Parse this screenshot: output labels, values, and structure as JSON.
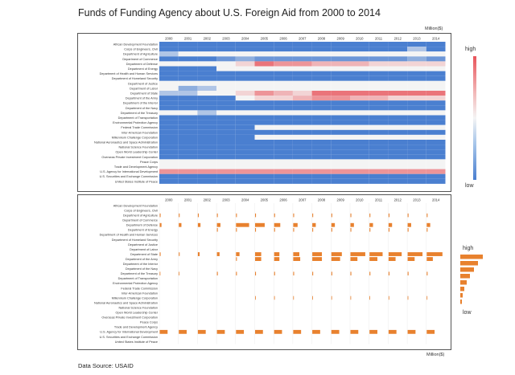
{
  "title": "Funds of Funding Agency about U.S. Foreign Aid from 2000 to 2014",
  "unit": "Million($)",
  "source": "Data Source: USAID",
  "legend": {
    "high": "high",
    "low": "low"
  },
  "colors": {
    "high": "#e8545b",
    "mid": "#f4f4f4",
    "low": "#4a7fd0",
    "bar": "#e8812e"
  },
  "chart_data": [
    {
      "type": "heatmap",
      "title": "Funds of Funding Agency about U.S. Foreign Aid from 2000 to 2014",
      "xlabel": "",
      "ylabel": "",
      "x": [
        "2000",
        "2001",
        "2002",
        "2003",
        "2004",
        "2005",
        "2006",
        "2007",
        "2008",
        "2009",
        "2010",
        "2011",
        "2012",
        "2013",
        "2014"
      ],
      "y": [
        "African Development Foundation",
        "Corps of Engineers, Civil",
        "Department of Agriculture",
        "Department of Commerce",
        "Department of Defense",
        "Department of Energy",
        "Department of Health and Human Services",
        "Department of Homeland Security",
        "Department of Justice",
        "Department of Labor",
        "Department of State",
        "Department of the Army",
        "Department of the Interior",
        "Department of the Navy",
        "Department of the Treasury",
        "Department of Transportation",
        "Environmental Protection Agency",
        "Federal Trade Commission",
        "Inter-American Foundation",
        "Millennium Challenge Corporation",
        "National Aeronautics and Space Administration",
        "National Science Foundation",
        "Open World Leadership Center",
        "Overseas Private Investment Corporation",
        "Peace Corps",
        "Trade and Development Agency",
        "U.S. Agency for International Development",
        "U.S. Securities and Exchange Commission",
        "United States Institute of Peace"
      ],
      "values": [
        [
          0.0,
          0.0,
          0.0,
          0.0,
          0.0,
          0.0,
          0.0,
          0.0,
          0.0,
          0.0,
          0.0,
          0.0,
          0.0,
          0.0,
          0.0
        ],
        [
          0.0,
          0.0,
          0.0,
          0.0,
          0.0,
          0.0,
          0.0,
          0.0,
          0.0,
          0.0,
          0.0,
          0.0,
          0.0,
          0.3,
          0.0
        ],
        [
          0.3,
          0.5,
          0.5,
          0.5,
          0.5,
          0.5,
          0.5,
          0.5,
          0.5,
          0.5,
          0.5,
          0.5,
          0.5,
          0.5,
          0.5
        ],
        [
          0.0,
          0.0,
          0.0,
          0.1,
          0.2,
          0.1,
          0.1,
          0.1,
          0.1,
          0.1,
          0.1,
          0.1,
          0.1,
          0.2,
          0.1
        ],
        [
          0.5,
          0.5,
          0.5,
          0.5,
          0.6,
          0.9,
          0.8,
          0.8,
          0.7,
          0.7,
          0.7,
          0.6,
          0.6,
          0.6,
          0.6
        ],
        [
          0.0,
          0.0,
          0.0,
          0.5,
          0.5,
          0.5,
          0.5,
          0.5,
          0.5,
          0.5,
          0.5,
          0.5,
          0.5,
          0.5,
          0.5
        ],
        [
          0.0,
          0.0,
          0.0,
          0.0,
          0.0,
          0.0,
          0.0,
          0.0,
          0.0,
          0.0,
          0.0,
          0.0,
          0.0,
          0.0,
          0.0
        ],
        [
          0.0,
          0.0,
          0.0,
          0.0,
          0.0,
          0.0,
          0.0,
          0.0,
          0.0,
          0.0,
          0.0,
          0.0,
          0.0,
          0.0,
          0.0
        ],
        [
          0.5,
          0.5,
          0.5,
          0.5,
          0.5,
          0.5,
          0.5,
          0.5,
          0.5,
          0.5,
          0.5,
          0.5,
          0.5,
          0.5,
          0.5
        ],
        [
          0.5,
          0.2,
          0.3,
          0.5,
          0.5,
          0.5,
          0.5,
          0.5,
          0.5,
          0.5,
          0.5,
          0.5,
          0.5,
          0.5,
          0.5
        ],
        [
          0.3,
          0.3,
          0.5,
          0.5,
          0.6,
          0.8,
          0.7,
          0.6,
          0.9,
          0.9,
          0.9,
          0.9,
          0.9,
          0.9,
          0.9
        ],
        [
          0.0,
          0.0,
          0.0,
          0.0,
          0.5,
          0.6,
          0.6,
          0.7,
          0.8,
          0.8,
          0.7,
          0.7,
          0.6,
          0.6,
          0.6
        ],
        [
          0.0,
          0.0,
          0.0,
          0.0,
          0.0,
          0.0,
          0.0,
          0.0,
          0.0,
          0.0,
          0.0,
          0.0,
          0.0,
          0.0,
          0.0
        ],
        [
          0.0,
          0.0,
          0.0,
          0.0,
          0.0,
          0.0,
          0.0,
          0.0,
          0.0,
          0.0,
          0.0,
          0.0,
          0.0,
          0.0,
          0.0
        ],
        [
          0.5,
          0.5,
          0.3,
          0.5,
          0.5,
          0.5,
          0.5,
          0.5,
          0.5,
          0.5,
          0.5,
          0.5,
          0.5,
          0.5,
          0.5
        ],
        [
          0.0,
          0.0,
          0.0,
          0.0,
          0.0,
          0.0,
          0.0,
          0.0,
          0.0,
          0.0,
          0.0,
          0.0,
          0.0,
          0.0,
          0.0
        ],
        [
          0.0,
          0.0,
          0.0,
          0.0,
          0.0,
          0.0,
          0.0,
          0.0,
          0.0,
          0.0,
          0.0,
          0.0,
          0.0,
          0.0,
          0.0
        ],
        [
          0.0,
          0.0,
          0.0,
          0.0,
          0.0,
          0.5,
          0.5,
          0.5,
          0.5,
          0.5,
          0.5,
          0.5,
          0.5,
          0.5,
          0.5
        ],
        [
          0.0,
          0.0,
          0.0,
          0.0,
          0.0,
          0.0,
          0.0,
          0.0,
          0.0,
          0.0,
          0.0,
          0.0,
          0.0,
          0.0,
          0.0
        ],
        [
          0.0,
          0.0,
          0.0,
          0.0,
          0.0,
          0.5,
          0.5,
          0.5,
          0.5,
          0.5,
          0.5,
          0.5,
          0.5,
          0.5,
          0.5
        ],
        [
          0.0,
          0.0,
          0.0,
          0.0,
          0.0,
          0.0,
          0.0,
          0.0,
          0.0,
          0.0,
          0.0,
          0.0,
          0.0,
          0.0,
          0.0
        ],
        [
          0.0,
          0.0,
          0.0,
          0.0,
          0.0,
          0.0,
          0.0,
          0.0,
          0.0,
          0.0,
          0.0,
          0.0,
          0.0,
          0.0,
          0.0
        ],
        [
          0.0,
          0.0,
          0.0,
          0.0,
          0.0,
          0.0,
          0.0,
          0.0,
          0.0,
          0.0,
          0.0,
          0.0,
          0.0,
          0.0,
          0.0
        ],
        [
          0.0,
          0.0,
          0.0,
          0.0,
          0.0,
          0.0,
          0.0,
          0.0,
          0.0,
          0.0,
          0.0,
          0.0,
          0.0,
          0.0,
          0.0
        ],
        [
          0.5,
          0.5,
          0.5,
          0.5,
          0.5,
          0.5,
          0.5,
          0.5,
          0.5,
          0.5,
          0.5,
          0.5,
          0.5,
          0.5,
          0.5
        ],
        [
          0.5,
          0.5,
          0.5,
          0.5,
          0.5,
          0.5,
          0.5,
          0.5,
          0.5,
          0.5,
          0.5,
          0.5,
          0.5,
          0.5,
          0.5
        ],
        [
          0.8,
          0.8,
          0.8,
          0.8,
          0.8,
          0.8,
          0.8,
          0.8,
          0.8,
          0.8,
          0.8,
          0.8,
          0.8,
          0.8,
          0.8
        ],
        [
          0.0,
          0.0,
          0.0,
          0.0,
          0.0,
          0.0,
          0.0,
          0.0,
          0.0,
          0.0,
          0.0,
          0.0,
          0.0,
          0.0,
          0.0
        ],
        [
          0.0,
          0.0,
          0.0,
          0.0,
          0.0,
          0.0,
          0.0,
          0.0,
          0.0,
          0.0,
          0.0,
          0.0,
          0.0,
          0.0,
          0.0
        ]
      ]
    },
    {
      "type": "bar",
      "title": "",
      "xlabel": "",
      "ylabel": "",
      "x": [
        "2000",
        "2001",
        "2002",
        "2003",
        "2004",
        "2005",
        "2006",
        "2007",
        "2008",
        "2009",
        "2010",
        "2011",
        "2012",
        "2013",
        "2014"
      ],
      "y": [
        "African Development Foundation",
        "Corps of Engineers, Civil",
        "Department of Agriculture",
        "Department of Commerce",
        "Department of Defense",
        "Department of Energy",
        "Department of Health and Human Services",
        "Department of Homeland Security",
        "Department of Justice",
        "Department of Labor",
        "Department of State",
        "Department of the Army",
        "Department of the Interior",
        "Department of the Navy",
        "Department of the Treasury",
        "Department of Transportation",
        "Environmental Protection Agency",
        "Federal Trade Commission",
        "Inter-American Foundation",
        "Millennium Challenge Corporation",
        "National Aeronautics and Space Administration",
        "National Science Foundation",
        "Open World Leadership Center",
        "Overseas Private Investment Corporation",
        "Peace Corps",
        "Trade and Development Agency",
        "U.S. Agency for International Development",
        "U.S. Securities and Exchange Commission",
        "United States Institute of Peace"
      ],
      "values": [
        [
          0,
          0,
          0,
          0,
          0,
          0,
          0,
          0,
          0,
          0,
          0,
          0,
          0,
          0,
          0
        ],
        [
          0,
          0,
          0,
          0,
          0,
          0,
          0,
          0,
          0,
          0,
          0,
          0,
          0,
          0,
          0
        ],
        [
          0.05,
          0.05,
          0.05,
          0.05,
          0.05,
          0.05,
          0.05,
          0.05,
          0.05,
          0.05,
          0.05,
          0.05,
          0.05,
          0.05,
          0.05
        ],
        [
          0,
          0,
          0,
          0,
          0,
          0,
          0,
          0,
          0,
          0,
          0,
          0,
          0,
          0,
          0
        ],
        [
          0.1,
          0.15,
          0.15,
          0.2,
          0.75,
          0.55,
          0.35,
          0.25,
          0.2,
          0.2,
          0.2,
          0.2,
          0.2,
          0.2,
          0.2
        ],
        [
          0,
          0,
          0,
          0.05,
          0.05,
          0.05,
          0.05,
          0.05,
          0.05,
          0.05,
          0.05,
          0.05,
          0.05,
          0.05,
          0.05
        ],
        [
          0,
          0,
          0,
          0,
          0,
          0,
          0,
          0,
          0,
          0,
          0,
          0,
          0,
          0,
          0
        ],
        [
          0,
          0,
          0,
          0,
          0,
          0,
          0,
          0,
          0,
          0,
          0,
          0,
          0,
          0,
          0
        ],
        [
          0,
          0,
          0,
          0,
          0,
          0,
          0,
          0,
          0,
          0,
          0,
          0,
          0,
          0,
          0
        ],
        [
          0,
          0,
          0,
          0,
          0,
          0,
          0,
          0,
          0,
          0,
          0,
          0,
          0,
          0,
          0
        ],
        [
          0.05,
          0.05,
          0.1,
          0.15,
          0.2,
          0.35,
          0.3,
          0.35,
          0.55,
          0.6,
          0.85,
          0.75,
          0.75,
          0.85,
          0.9
        ],
        [
          0,
          0,
          0,
          0,
          0.05,
          0.35,
          0.3,
          0.4,
          0.55,
          0.5,
          0.4,
          0.45,
          0.4,
          0.4,
          0.35
        ],
        [
          0,
          0,
          0,
          0,
          0,
          0,
          0,
          0,
          0,
          0,
          0,
          0,
          0,
          0,
          0
        ],
        [
          0,
          0,
          0,
          0,
          0,
          0,
          0,
          0,
          0,
          0,
          0,
          0,
          0,
          0,
          0
        ],
        [
          0.03,
          0.03,
          0,
          0.05,
          0.05,
          0.05,
          0.05,
          0.05,
          0.05,
          0.05,
          0.05,
          0.05,
          0.05,
          0.05,
          0.05
        ],
        [
          0,
          0,
          0,
          0,
          0,
          0,
          0,
          0,
          0,
          0,
          0,
          0,
          0,
          0,
          0
        ],
        [
          0,
          0,
          0,
          0,
          0,
          0,
          0,
          0,
          0,
          0,
          0,
          0,
          0,
          0,
          0
        ],
        [
          0,
          0,
          0,
          0,
          0,
          0,
          0,
          0,
          0,
          0,
          0,
          0,
          0,
          0,
          0
        ],
        [
          0,
          0,
          0,
          0,
          0,
          0,
          0,
          0,
          0,
          0,
          0,
          0,
          0,
          0,
          0
        ],
        [
          0,
          0,
          0,
          0,
          0,
          0.03,
          0.03,
          0.03,
          0.03,
          0.03,
          0.03,
          0.03,
          0.03,
          0.03,
          0.03
        ],
        [
          0,
          0,
          0,
          0,
          0,
          0,
          0,
          0,
          0,
          0,
          0,
          0,
          0,
          0,
          0
        ],
        [
          0,
          0,
          0,
          0,
          0,
          0,
          0,
          0,
          0,
          0,
          0,
          0,
          0,
          0,
          0
        ],
        [
          0,
          0,
          0,
          0,
          0,
          0,
          0,
          0,
          0,
          0,
          0,
          0,
          0,
          0,
          0
        ],
        [
          0,
          0,
          0,
          0,
          0,
          0,
          0,
          0,
          0,
          0,
          0,
          0,
          0,
          0,
          0
        ],
        [
          0,
          0,
          0,
          0,
          0,
          0,
          0,
          0,
          0,
          0,
          0,
          0,
          0,
          0,
          0
        ],
        [
          0,
          0,
          0,
          0,
          0,
          0,
          0,
          0,
          0,
          0,
          0,
          0,
          0,
          0,
          0
        ],
        [
          0.45,
          0.45,
          0.45,
          0.45,
          0.45,
          0.45,
          0.45,
          0.45,
          0.45,
          0.45,
          0.45,
          0.45,
          0.45,
          0.45,
          0.45
        ],
        [
          0,
          0,
          0,
          0,
          0,
          0,
          0,
          0,
          0,
          0,
          0,
          0,
          0,
          0,
          0
        ],
        [
          0,
          0,
          0,
          0,
          0,
          0,
          0,
          0,
          0,
          0,
          0,
          0,
          0,
          0,
          0
        ]
      ]
    }
  ]
}
